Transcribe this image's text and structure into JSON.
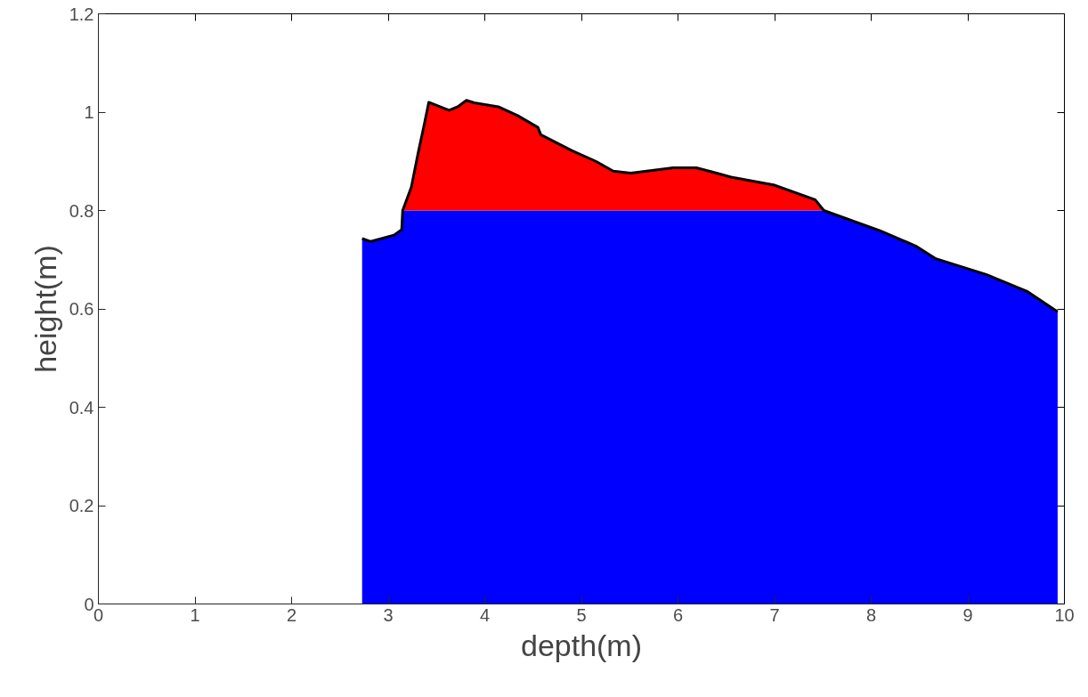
{
  "chart_data": {
    "type": "area",
    "stacked": true,
    "xlabel": "depth(m)",
    "ylabel": "height(m)",
    "x": [
      2.73,
      2.82,
      3.06,
      3.14,
      3.15,
      3.24,
      3.31,
      3.37,
      3.42,
      3.63,
      3.72,
      3.81,
      3.89,
      4.14,
      4.34,
      4.55,
      4.58,
      4.9,
      5.15,
      5.33,
      5.51,
      5.95,
      6.19,
      6.4,
      6.55,
      6.99,
      7.42,
      7.51,
      8.09,
      8.46,
      8.67,
      9.19,
      9.62,
      9.93
    ],
    "series": [
      {
        "color": "#0000ff",
        "values": [
          0.743,
          0.737,
          0.75,
          0.761,
          0.8,
          0.8,
          0.8,
          0.8,
          0.8,
          0.8,
          0.8,
          0.8,
          0.8,
          0.8,
          0.8,
          0.8,
          0.8,
          0.8,
          0.8,
          0.8,
          0.8,
          0.8,
          0.8,
          0.8,
          0.8,
          0.8,
          0.8,
          0.8,
          0.759,
          0.728,
          0.702,
          0.67,
          0.635,
          0.594
        ]
      },
      {
        "color": "#ff0000",
        "values": [
          0,
          0,
          0,
          0,
          0,
          0.048,
          0.117,
          0.172,
          0.22,
          0.204,
          0.211,
          0.224,
          0.219,
          0.211,
          0.193,
          0.169,
          0.154,
          0.122,
          0.1,
          0.08,
          0.076,
          0.087,
          0.087,
          0.076,
          0.068,
          0.052,
          0.022,
          0,
          0,
          0,
          0,
          0,
          0,
          0
        ]
      }
    ],
    "xlim": [
      0,
      10
    ],
    "xticks": [
      0,
      1,
      2,
      3,
      4,
      5,
      6,
      7,
      8,
      9,
      10
    ],
    "ylim": [
      0,
      1.2
    ],
    "yticks": [
      0,
      0.2,
      0.4,
      0.6,
      0.8,
      1,
      1.2
    ],
    "grid": false
  }
}
